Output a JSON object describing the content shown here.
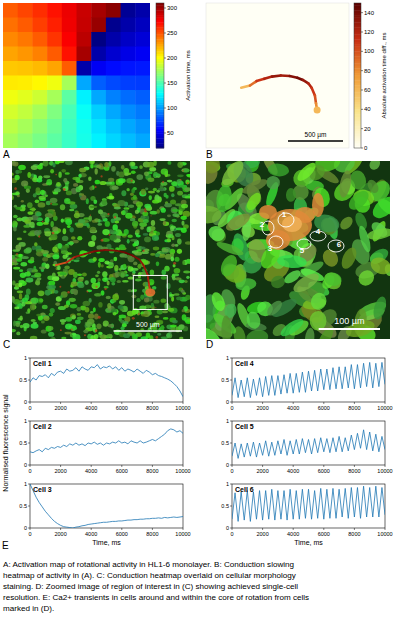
{
  "chart_data": [
    {
      "panel": "A",
      "type": "heatmap",
      "colorbar_label": "Activation time, ms",
      "color_range": [
        20,
        310
      ],
      "color_ticks": [
        50,
        100,
        150,
        200,
        250,
        300
      ],
      "cells": [
        [
          248,
          254,
          261,
          269,
          279,
          289,
          299,
          307,
          26,
          32
        ],
        [
          242,
          248,
          256,
          265,
          278,
          290,
          303,
          24,
          32,
          38
        ],
        [
          235,
          240,
          248,
          259,
          275,
          293,
          21,
          32,
          40,
          45
        ],
        [
          227,
          231,
          237,
          248,
          269,
          299,
          32,
          43,
          49,
          53
        ],
        [
          217,
          218,
          221,
          227,
          248,
          32,
          53,
          59,
          62,
          63
        ],
        [
          207,
          206,
          203,
          197,
          176,
          104,
          83,
          77,
          74,
          73
        ],
        [
          197,
          193,
          187,
          176,
          155,
          125,
          104,
          93,
          87,
          83
        ],
        [
          189,
          184,
          176,
          165,
          149,
          131,
          115,
          104,
          96,
          91
        ],
        [
          182,
          176,
          168,
          159,
          146,
          134,
          121,
          112,
          104,
          98
        ],
        [
          176,
          170,
          163,
          155,
          145,
          135,
          125,
          117,
          110,
          104
        ]
      ]
    },
    {
      "panel": "B",
      "type": "heatmap",
      "colorbar_label": "Absolute activation time diff., ms",
      "color_range": [
        0,
        150
      ],
      "color_ticks": [
        0,
        20,
        40,
        60,
        80,
        100,
        120,
        140
      ],
      "xlim": [
        0,
        1300
      ],
      "ylim": [
        0,
        1300
      ],
      "line": {
        "x": [
          320,
          400,
          460,
          530,
          600,
          680,
          760,
          830,
          880,
          930,
          960,
          990,
          1000,
          1010
        ],
        "y": [
          760,
          740,
          700,
          680,
          660,
          650,
          655,
          670,
          690,
          720,
          760,
          830,
          900,
          960
        ],
        "values": [
          60,
          90,
          110,
          120,
          130,
          125,
          135,
          140,
          130,
          120,
          110,
          100,
          80,
          60
        ]
      },
      "scale_bar": {
        "value": 500,
        "label": "500 µm"
      }
    },
    {
      "type": "line",
      "title": "Cell 1",
      "color": "#1f77b4",
      "xlim": [
        0,
        10000
      ],
      "ylim": [
        0,
        1
      ],
      "xticks": [
        0,
        2000,
        4000,
        6000,
        8000,
        10000
      ],
      "yticks": [
        0,
        0.5,
        1
      ],
      "x": [
        0,
        200,
        400,
        600,
        800,
        1000,
        1200,
        1400,
        1600,
        1800,
        2000,
        2200,
        2400,
        2600,
        2800,
        3000,
        3200,
        3400,
        3600,
        3800,
        4000,
        4200,
        4400,
        4600,
        4800,
        5000,
        5200,
        5400,
        5600,
        5800,
        6000,
        6200,
        6400,
        6600,
        6800,
        7000,
        7200,
        7400,
        7600,
        7800,
        8000,
        8200,
        8400,
        8600,
        8800,
        9000,
        9200,
        9400,
        9600,
        9800,
        10000
      ],
      "values": [
        0.45,
        0.55,
        0.5,
        0.6,
        0.58,
        0.62,
        0.55,
        0.65,
        0.6,
        0.68,
        0.7,
        0.65,
        0.75,
        0.7,
        0.72,
        0.78,
        0.7,
        0.8,
        0.75,
        0.72,
        0.8,
        0.78,
        0.85,
        0.75,
        0.8,
        0.78,
        0.82,
        0.75,
        0.8,
        0.72,
        0.78,
        0.7,
        0.75,
        0.72,
        0.68,
        0.75,
        0.7,
        0.65,
        0.72,
        0.68,
        0.62,
        0.65,
        0.6,
        0.58,
        0.55,
        0.52,
        0.48,
        0.42,
        0.35,
        0.25,
        0.12
      ]
    },
    {
      "type": "line",
      "title": "Cell 2",
      "color": "#1f77b4",
      "xlim": [
        0,
        10000
      ],
      "ylim": [
        0,
        1
      ],
      "xticks": [
        0,
        2000,
        4000,
        6000,
        8000,
        10000
      ],
      "yticks": [
        0,
        0.5,
        1
      ],
      "x": [
        0,
        200,
        400,
        600,
        800,
        1000,
        1200,
        1400,
        1600,
        1800,
        2000,
        2200,
        2400,
        2600,
        2800,
        3000,
        3200,
        3400,
        3600,
        3800,
        4000,
        4200,
        4400,
        4600,
        4800,
        5000,
        5200,
        5400,
        5600,
        5800,
        6000,
        6200,
        6400,
        6600,
        6800,
        7000,
        7200,
        7400,
        7600,
        7800,
        8000,
        8200,
        8400,
        8600,
        8800,
        9000,
        9200,
        9400,
        9600,
        9800,
        10000
      ],
      "values": [
        0.3,
        0.28,
        0.32,
        0.35,
        0.3,
        0.38,
        0.35,
        0.4,
        0.38,
        0.42,
        0.4,
        0.45,
        0.42,
        0.48,
        0.45,
        0.5,
        0.45,
        0.48,
        0.44,
        0.5,
        0.48,
        0.52,
        0.47,
        0.5,
        0.45,
        0.5,
        0.48,
        0.52,
        0.5,
        0.55,
        0.5,
        0.52,
        0.48,
        0.55,
        0.52,
        0.5,
        0.55,
        0.5,
        0.52,
        0.55,
        0.58,
        0.55,
        0.6,
        0.65,
        0.7,
        0.78,
        0.82,
        0.8,
        0.75,
        0.78,
        0.72
      ]
    },
    {
      "type": "line",
      "title": "Cell 3",
      "color": "#1f77b4",
      "xlim": [
        0,
        10000
      ],
      "ylim": [
        0,
        1
      ],
      "xticks": [
        0,
        2000,
        4000,
        6000,
        8000,
        10000
      ],
      "yticks": [
        0,
        0.5,
        1
      ],
      "x_label": "Time, ms",
      "x": [
        0,
        200,
        400,
        600,
        800,
        1000,
        1200,
        1400,
        1600,
        1800,
        2000,
        2200,
        2400,
        2600,
        2800,
        3000,
        3200,
        3400,
        3600,
        3800,
        4000,
        4200,
        4400,
        4600,
        4800,
        5000,
        5200,
        5400,
        5600,
        5800,
        6000,
        6200,
        6400,
        6600,
        6800,
        7000,
        7200,
        7400,
        7600,
        7800,
        8000,
        8200,
        8400,
        8600,
        8800,
        9000,
        9200,
        9400,
        9600,
        9800,
        10000
      ],
      "values": [
        1,
        0.85,
        0.7,
        0.58,
        0.48,
        0.38,
        0.3,
        0.22,
        0.15,
        0.1,
        0.06,
        0.03,
        0.02,
        0.01,
        0,
        0.02,
        0.03,
        0.05,
        0.06,
        0.08,
        0.09,
        0.1,
        0.11,
        0.12,
        0.13,
        0.13,
        0.14,
        0.15,
        0.15,
        0.16,
        0.16,
        0.17,
        0.18,
        0.18,
        0.19,
        0.19,
        0.2,
        0.2,
        0.21,
        0.21,
        0.22,
        0.22,
        0.23,
        0.22,
        0.24,
        0.23,
        0.24,
        0.25,
        0.24,
        0.25,
        0.26
      ]
    },
    {
      "type": "line",
      "title": "Cell 4",
      "color": "#1f77b4",
      "xlim": [
        0,
        10000
      ],
      "ylim": [
        0,
        1
      ],
      "xticks": [
        0,
        2000,
        4000,
        6000,
        8000,
        10000
      ],
      "yticks": [
        0,
        0.5,
        1
      ],
      "x": [
        0,
        200,
        400,
        600,
        800,
        1000,
        1200,
        1400,
        1600,
        1800,
        2000,
        2200,
        2400,
        2600,
        2800,
        3000,
        3200,
        3400,
        3600,
        3800,
        4000,
        4200,
        4400,
        4600,
        4800,
        5000,
        5200,
        5400,
        5600,
        5800,
        6000,
        6200,
        6400,
        6600,
        6800,
        7000,
        7200,
        7400,
        7600,
        7800,
        8000,
        8200,
        8400,
        8600,
        8800,
        9000,
        9200,
        9400,
        9600,
        9800,
        10000
      ],
      "values": [
        0.15,
        0.55,
        0.1,
        0.5,
        0.12,
        0.55,
        0.1,
        0.52,
        0.15,
        0.55,
        0.12,
        0.58,
        0.15,
        0.6,
        0.15,
        0.6,
        0.18,
        0.62,
        0.2,
        0.65,
        0.2,
        0.65,
        0.22,
        0.68,
        0.22,
        0.7,
        0.25,
        0.72,
        0.25,
        0.75,
        0.28,
        0.75,
        0.28,
        0.78,
        0.3,
        0.8,
        0.3,
        0.8,
        0.32,
        0.85,
        0.3,
        0.85,
        0.32,
        0.88,
        0.35,
        0.9,
        0.32,
        0.88,
        0.35,
        0.9,
        0.4
      ]
    },
    {
      "type": "line",
      "title": "Cell 5",
      "color": "#1f77b4",
      "xlim": [
        0,
        10000
      ],
      "ylim": [
        0,
        1
      ],
      "xticks": [
        0,
        2000,
        4000,
        6000,
        8000,
        10000
      ],
      "yticks": [
        0,
        0.5,
        1
      ],
      "x": [
        0,
        200,
        400,
        600,
        800,
        1000,
        1200,
        1400,
        1600,
        1800,
        2000,
        2200,
        2400,
        2600,
        2800,
        3000,
        3200,
        3400,
        3600,
        3800,
        4000,
        4200,
        4400,
        4600,
        4800,
        5000,
        5200,
        5400,
        5600,
        5800,
        6000,
        6200,
        6400,
        6600,
        6800,
        7000,
        7200,
        7400,
        7600,
        7800,
        8000,
        8200,
        8400,
        8600,
        8800,
        9000,
        9200,
        9400,
        9600,
        9800,
        10000
      ],
      "values": [
        0.2,
        0.5,
        0.15,
        0.48,
        0.18,
        0.5,
        0.2,
        0.52,
        0.18,
        0.5,
        0.22,
        0.55,
        0.2,
        0.52,
        0.22,
        0.55,
        0.25,
        0.58,
        0.22,
        0.55,
        0.25,
        0.58,
        0.25,
        0.6,
        0.28,
        0.58,
        0.25,
        0.6,
        0.28,
        0.62,
        0.3,
        0.6,
        0.28,
        0.62,
        0.3,
        0.65,
        0.3,
        0.62,
        0.32,
        0.68,
        0.35,
        0.72,
        0.38,
        0.8,
        0.35,
        0.75,
        0.32,
        0.7,
        0.3,
        0.65,
        0.35
      ]
    },
    {
      "type": "line",
      "title": "Cell 6",
      "color": "#1f77b4",
      "xlim": [
        0,
        10000
      ],
      "ylim": [
        0,
        1
      ],
      "xticks": [
        0,
        2000,
        4000,
        6000,
        8000,
        10000
      ],
      "yticks": [
        0,
        0.5,
        1
      ],
      "x_label": "Time, ms",
      "x": [
        0,
        200,
        400,
        600,
        800,
        1000,
        1200,
        1400,
        1600,
        1800,
        2000,
        2200,
        2400,
        2600,
        2800,
        3000,
        3200,
        3400,
        3600,
        3800,
        4000,
        4200,
        4400,
        4600,
        4800,
        5000,
        5200,
        5400,
        5600,
        5800,
        6000,
        6200,
        6400,
        6600,
        6800,
        7000,
        7200,
        7400,
        7600,
        7800,
        8000,
        8200,
        8400,
        8600,
        8800,
        9000,
        9200,
        9400,
        9600,
        9800,
        10000
      ],
      "values": [
        0.2,
        0.8,
        0.15,
        0.82,
        0.18,
        0.85,
        0.15,
        0.82,
        0.2,
        0.85,
        0.18,
        0.85,
        0.2,
        0.88,
        0.18,
        0.85,
        0.2,
        0.85,
        0.18,
        0.88,
        0.2,
        0.85,
        0.2,
        0.88,
        0.22,
        0.88,
        0.2,
        0.85,
        0.22,
        0.9,
        0.2,
        0.88,
        0.22,
        0.9,
        0.22,
        0.88,
        0.25,
        0.9,
        0.22,
        0.92,
        0.25,
        0.92,
        0.22,
        0.95,
        0.25,
        0.92,
        0.25,
        0.95,
        0.25,
        0.92,
        0.3
      ]
    }
  ],
  "images": [
    {
      "panel": "C",
      "type": "image",
      "xlim": [
        0,
        1300
      ],
      "ylim": [
        0,
        1300
      ],
      "scale_bar": {
        "value": 500,
        "label": "500 µm"
      }
    },
    {
      "panel": "D",
      "type": "image",
      "xlim": [
        0,
        300
      ],
      "scale_bar": {
        "value": 100,
        "label": "100 µm"
      },
      "cell_labels": [
        "1",
        "2",
        "3",
        "4",
        "5",
        "6"
      ]
    }
  ],
  "figure": {
    "panel": "E",
    "y_label": "Normalised fluorescence signal",
    "caption": [
      "A: Activation map of rotational activity in HL1-6 monolayer. B: Conduction slowing",
      "heatmap of activity in (A). C: Conduction heatmap overlaid on cellular morphology",
      "staining. D: Zoomed image of region of interest in (C) showing achieved single-cell",
      "resolution. E: Ca2+ transients in cells around and within the core of rotation from cells",
      "marked in (D)."
    ]
  }
}
